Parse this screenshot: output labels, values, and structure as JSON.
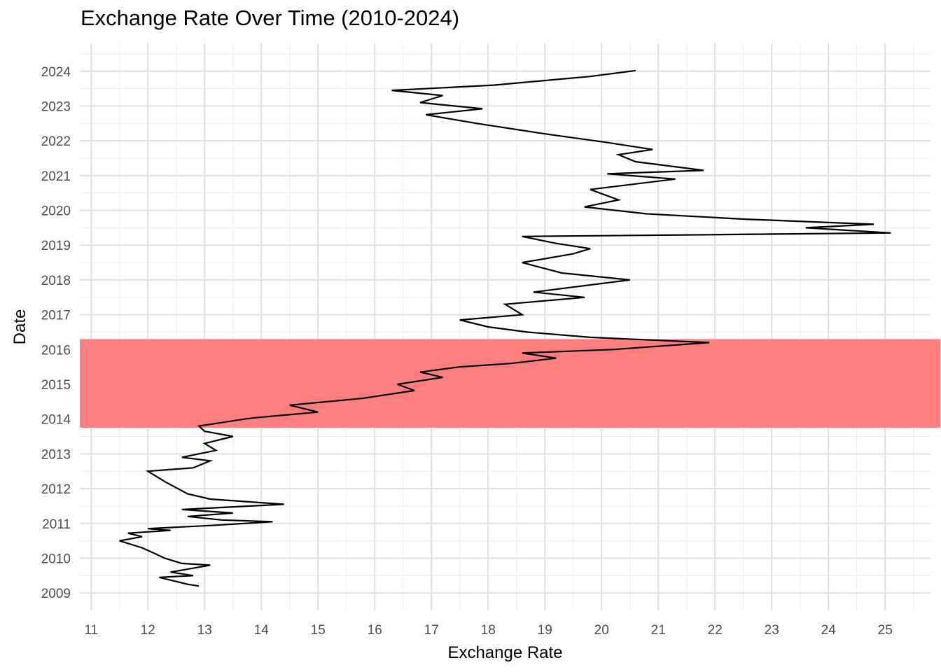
{
  "chart_data": {
    "type": "line",
    "title": "Exchange Rate Over Time (2010-2024)",
    "xlabel": "Exchange Rate",
    "ylabel": "Date",
    "xlim": [
      10.8,
      25.8
    ],
    "ylim": [
      2008.5,
      2024.8
    ],
    "x_ticks": [
      11,
      12,
      13,
      14,
      15,
      16,
      17,
      18,
      19,
      20,
      21,
      22,
      23,
      24,
      25
    ],
    "y_ticks": [
      2009,
      2010,
      2011,
      2012,
      2013,
      2014,
      2015,
      2016,
      2017,
      2018,
      2019,
      2020,
      2021,
      2022,
      2023,
      2024
    ],
    "grid": true,
    "highlight_band": {
      "y_from": 2013.75,
      "y_to": 2016.3,
      "color": "#ff7f7f"
    },
    "line_color": "#000000",
    "series": [
      {
        "points": [
          [
            12.9,
            2009.2
          ],
          [
            12.7,
            2009.25
          ],
          [
            12.2,
            2009.45
          ],
          [
            12.8,
            2009.5
          ],
          [
            12.4,
            2009.6
          ],
          [
            13.1,
            2009.8
          ],
          [
            12.6,
            2009.85
          ],
          [
            12.3,
            2010.0
          ],
          [
            12.1,
            2010.15
          ],
          [
            11.9,
            2010.3
          ],
          [
            11.5,
            2010.5
          ],
          [
            11.9,
            2010.62
          ],
          [
            11.65,
            2010.72
          ],
          [
            12.4,
            2010.8
          ],
          [
            12.0,
            2010.85
          ],
          [
            13.2,
            2010.95
          ],
          [
            14.2,
            2011.05
          ],
          [
            13.3,
            2011.1
          ],
          [
            12.7,
            2011.2
          ],
          [
            13.5,
            2011.3
          ],
          [
            12.6,
            2011.4
          ],
          [
            14.4,
            2011.55
          ],
          [
            13.1,
            2011.7
          ],
          [
            12.7,
            2011.85
          ],
          [
            12.3,
            2012.2
          ],
          [
            12.0,
            2012.5
          ],
          [
            12.8,
            2012.6
          ],
          [
            13.1,
            2012.8
          ],
          [
            12.6,
            2012.9
          ],
          [
            13.2,
            2013.1
          ],
          [
            13.0,
            2013.3
          ],
          [
            13.5,
            2013.5
          ],
          [
            13.0,
            2013.65
          ],
          [
            12.9,
            2013.8
          ],
          [
            13.3,
            2013.9
          ],
          [
            13.7,
            2014.0
          ],
          [
            13.9,
            2014.04
          ],
          [
            15.0,
            2014.2
          ],
          [
            14.5,
            2014.4
          ],
          [
            15.8,
            2014.6
          ],
          [
            16.7,
            2014.82
          ],
          [
            16.4,
            2015.0
          ],
          [
            17.2,
            2015.2
          ],
          [
            16.8,
            2015.35
          ],
          [
            17.5,
            2015.5
          ],
          [
            18.4,
            2015.6
          ],
          [
            19.2,
            2015.75
          ],
          [
            18.6,
            2015.9
          ],
          [
            20.2,
            2016.0
          ],
          [
            21.9,
            2016.2
          ],
          [
            19.8,
            2016.35
          ],
          [
            18.7,
            2016.5
          ],
          [
            18.0,
            2016.65
          ],
          [
            17.5,
            2016.85
          ],
          [
            18.6,
            2017.0
          ],
          [
            18.3,
            2017.3
          ],
          [
            19.7,
            2017.5
          ],
          [
            18.8,
            2017.65
          ],
          [
            20.5,
            2018.0
          ],
          [
            19.3,
            2018.2
          ],
          [
            18.6,
            2018.5
          ],
          [
            19.5,
            2018.75
          ],
          [
            19.8,
            2018.9
          ],
          [
            19.2,
            2019.05
          ],
          [
            18.6,
            2019.25
          ],
          [
            25.1,
            2019.35
          ],
          [
            23.6,
            2019.5
          ],
          [
            24.8,
            2019.6
          ],
          [
            22.5,
            2019.75
          ],
          [
            20.8,
            2019.9
          ],
          [
            19.7,
            2020.1
          ],
          [
            20.3,
            2020.3
          ],
          [
            19.8,
            2020.6
          ],
          [
            21.3,
            2020.9
          ],
          [
            20.1,
            2021.05
          ],
          [
            21.8,
            2021.15
          ],
          [
            20.6,
            2021.4
          ],
          [
            20.3,
            2021.6
          ],
          [
            20.9,
            2021.75
          ],
          [
            20.1,
            2021.95
          ],
          [
            19.0,
            2022.2
          ],
          [
            17.8,
            2022.5
          ],
          [
            16.9,
            2022.75
          ],
          [
            17.9,
            2022.92
          ],
          [
            16.8,
            2023.1
          ],
          [
            17.2,
            2023.3
          ],
          [
            16.3,
            2023.45
          ],
          [
            18.1,
            2023.6
          ],
          [
            19.8,
            2023.85
          ],
          [
            20.6,
            2024.02
          ]
        ]
      }
    ]
  }
}
